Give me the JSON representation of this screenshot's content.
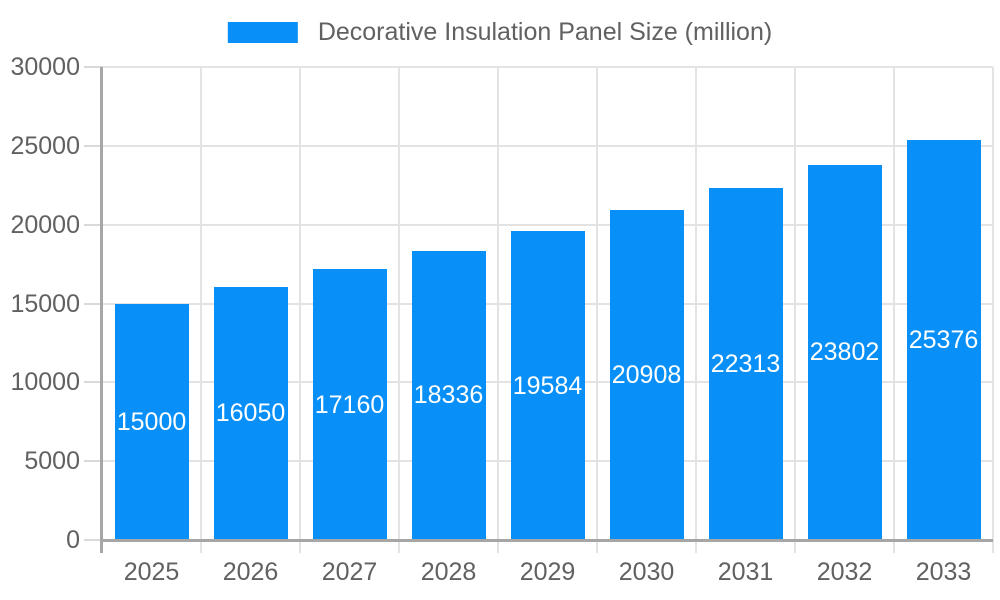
{
  "legend": {
    "label": "Decorative Insulation Panel Size (million)"
  },
  "chart_data": {
    "type": "bar",
    "title": "Decorative Insulation Panel Size (million)",
    "series_name": "Decorative Insulation Panel Size (million)",
    "categories": [
      "2025",
      "2026",
      "2027",
      "2028",
      "2029",
      "2030",
      "2031",
      "2032",
      "2033"
    ],
    "values": [
      15000,
      16050,
      17160,
      18336,
      19584,
      20908,
      22313,
      23802,
      25376
    ],
    "xlabel": "",
    "ylabel": "",
    "ylim": [
      0,
      30000
    ],
    "yticks": [
      0,
      5000,
      10000,
      15000,
      20000,
      25000,
      30000
    ],
    "grid": true,
    "legend_position": "top-center",
    "bar_color": "#0890F8",
    "value_label_color": "#ffffff",
    "axis_color": "#a6a6a6",
    "gridline_color": "#e3e3e3",
    "tick_label_color": "#616161"
  }
}
